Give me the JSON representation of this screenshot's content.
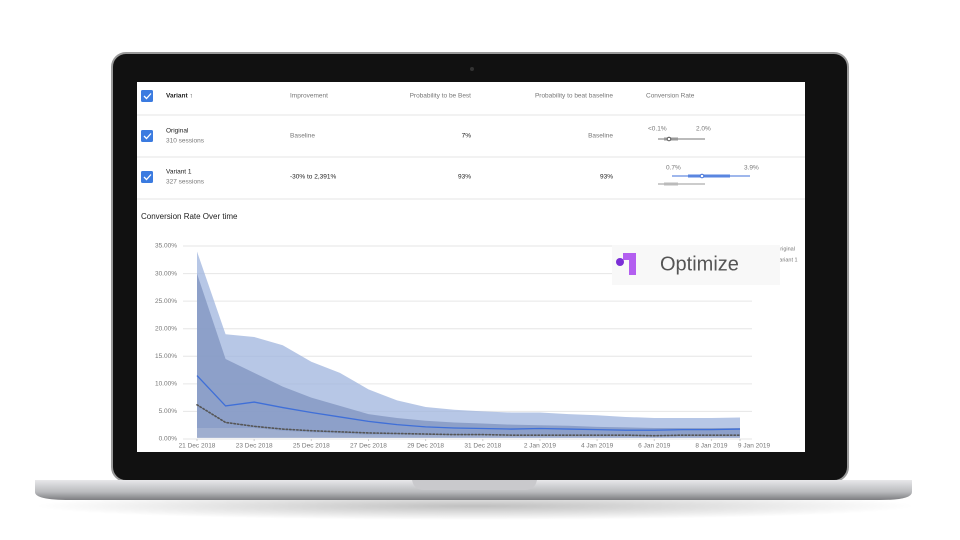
{
  "table": {
    "columns": [
      "Variant ↑",
      "Improvement",
      "Probability to be Best",
      "Probability to beat baseline",
      "Conversion Rate"
    ],
    "rows": [
      {
        "variant": "Original",
        "sessions": "310 sessions",
        "improvement": "Baseline",
        "probability_best": "7%",
        "probability_beat": "Baseline",
        "range": [
          "<0.1%",
          "2.0%"
        ]
      },
      {
        "variant": "Variant 1",
        "sessions": "327 sessions",
        "improvement": "-30% to 2,391%",
        "probability_best": "93%",
        "probability_beat": "93%",
        "range": [
          "0.7%",
          "3.9%"
        ]
      }
    ]
  },
  "logo": "Optimize",
  "chart_data": {
    "type": "line",
    "title": "Conversion Rate Over time",
    "x": [
      "2018-12-21",
      "2018-12-22",
      "2018-12-23",
      "2018-12-24",
      "2018-12-25",
      "2018-12-26",
      "2018-12-27",
      "2018-12-28",
      "2018-12-29",
      "2018-12-30",
      "2018-12-31",
      "2019-01-01",
      "2019-01-02",
      "2019-01-03",
      "2019-01-04",
      "2019-01-05",
      "2019-01-06",
      "2019-01-07",
      "2019-01-08",
      "2019-01-09"
    ],
    "series": [
      {
        "name": "Original",
        "color": "#555555",
        "dash": "dotted",
        "values": [
          6.2,
          3,
          2.3,
          1.8,
          1.5,
          1.3,
          1.1,
          1,
          0.9,
          0.8,
          0.8,
          0.7,
          0.7,
          0.7,
          0.7,
          0.7,
          0.6,
          0.7,
          0.7,
          0.7
        ]
      },
      {
        "name": "Variant 1",
        "color": "#3f6fd8",
        "values": [
          11.5,
          6,
          6.7,
          5.7,
          4.8,
          4,
          3.2,
          2.6,
          2.2,
          2,
          1.9,
          1.8,
          1.9,
          1.8,
          1.7,
          1.6,
          1.6,
          1.7,
          1.7,
          1.8
        ]
      }
    ],
    "bands": [
      {
        "color": "#9fb4de",
        "upper": [
          34,
          19,
          18.5,
          17,
          14,
          12,
          9,
          7,
          5.8,
          5.3,
          5,
          4.8,
          4.8,
          4.5,
          4.3,
          4,
          3.8,
          3.8,
          3.8,
          3.9
        ],
        "lower": [
          2,
          2,
          2,
          1.5,
          1.2,
          1,
          0.8,
          0.8,
          0.7,
          0.7,
          0.7,
          0.7,
          0.7,
          0.7,
          0.7,
          0.7,
          0.7,
          0.7,
          0.7,
          0.7
        ]
      },
      {
        "color": "#7f93bf",
        "upper": [
          30,
          14.5,
          12,
          9.5,
          7.5,
          6,
          4.5,
          3.8,
          3.3,
          3,
          2.8,
          2.6,
          2.5,
          2.4,
          2.2,
          2.1,
          2,
          2,
          2,
          2
        ],
        "lower": [
          0.2,
          0.2,
          0.2,
          0.2,
          0.2,
          0.2,
          0.2,
          0.2,
          0.2,
          0.2,
          0.2,
          0.2,
          0.2,
          0.2,
          0.2,
          0.2,
          0.2,
          0.2,
          0.2,
          0.2
        ]
      }
    ],
    "ylim": [
      0,
      35
    ],
    "yticks": [
      {
        "value": 0,
        "label": "0.00%"
      },
      {
        "value": 5,
        "label": "5.00%"
      },
      {
        "value": 10,
        "label": "10.00%"
      },
      {
        "value": 15,
        "label": "15.00%"
      },
      {
        "value": 20,
        "label": "20.00%"
      },
      {
        "value": 25,
        "label": "25.00%"
      },
      {
        "value": 30,
        "label": "30.00%"
      },
      {
        "value": 35,
        "label": "35.00%"
      }
    ],
    "xlim": [
      "2018-12-21",
      "2019-01-09"
    ],
    "xticks": [
      {
        "value": "2018-12-21",
        "label": "21 Dec 2018"
      },
      {
        "value": "2018-12-23",
        "label": "23 Dec 2018"
      },
      {
        "value": "2018-12-25",
        "label": "25 Dec 2018"
      },
      {
        "value": "2018-12-27",
        "label": "27 Dec 2018"
      },
      {
        "value": "2018-12-29",
        "label": "29 Dec 2018"
      },
      {
        "value": "2018-12-31",
        "label": "31 Dec 2018"
      },
      {
        "value": "2019-01-02",
        "label": "2 Jan 2019"
      },
      {
        "value": "2019-01-04",
        "label": "4 Jan 2019"
      },
      {
        "value": "2019-01-06",
        "label": "6 Jan 2019"
      },
      {
        "value": "2019-01-08",
        "label": "8 Jan 2019"
      },
      {
        "value": "2019-01-09",
        "label": "9 Jan 2019"
      }
    ],
    "grid": true,
    "legend": "top-right"
  }
}
